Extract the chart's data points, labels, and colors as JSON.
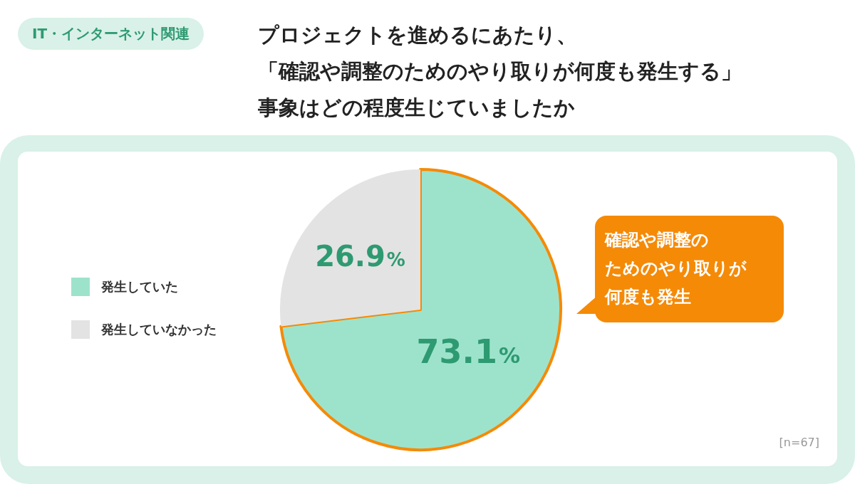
{
  "chart_data": {
    "type": "pie",
    "title": "プロジェクトを進めるにあたり、「確認や調整のためのやり取りが何度も発生する」事象はどの程度生じていましたか",
    "categories": [
      "発生していた",
      "発生していなかった"
    ],
    "values": [
      73.1,
      26.9
    ],
    "colors": [
      "#9de3cc",
      "#e3e3e3"
    ],
    "value_labels": [
      "73.1%",
      "26.9%"
    ],
    "legend": "left",
    "annotations": [
      "IT・インターネット関連",
      "確認や調整のためのやり取りが何度も発生",
      "[n=67]"
    ]
  }
}
